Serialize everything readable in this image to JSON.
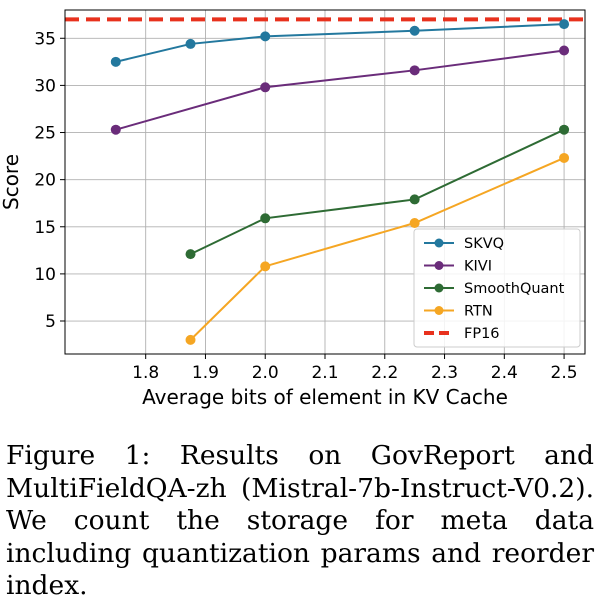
{
  "chart_data": {
    "type": "line",
    "title": "",
    "xlabel": "Average bits of element in KV Cache",
    "ylabel": "Score",
    "xlim": [
      1.665,
      2.535
    ],
    "ylim": [
      1.5,
      38
    ],
    "xticks": [
      1.8,
      1.9,
      2.0,
      2.1,
      2.2,
      2.3,
      2.4,
      2.5
    ],
    "xtick_labels": [
      "1.8",
      "1.9",
      "2.0",
      "2.1",
      "2.2",
      "2.3",
      "2.4",
      "2.5"
    ],
    "yticks": [
      5,
      10,
      15,
      20,
      25,
      30,
      35
    ],
    "ytick_labels": [
      "5",
      "10",
      "15",
      "20",
      "25",
      "30",
      "35"
    ],
    "grid": true,
    "legend_position": "lower-right",
    "series": [
      {
        "name": "SKVQ",
        "color": "#23789e",
        "x": [
          1.75,
          1.875,
          2.0,
          2.25,
          2.5
        ],
        "y": [
          32.5,
          34.4,
          35.2,
          35.8,
          36.5
        ]
      },
      {
        "name": "KIVI",
        "color": "#6a2c7a",
        "x": [
          1.75,
          2.0,
          2.25,
          2.5
        ],
        "y": [
          25.3,
          29.8,
          31.6,
          33.7
        ]
      },
      {
        "name": "SmoothQuant",
        "color": "#2e6b34",
        "x": [
          1.875,
          2.0,
          2.25,
          2.5
        ],
        "y": [
          12.1,
          15.9,
          17.9,
          25.3
        ]
      },
      {
        "name": "RTN",
        "color": "#f5a623",
        "x": [
          1.875,
          2.0,
          2.25,
          2.5
        ],
        "y": [
          3.0,
          10.8,
          15.4,
          22.3
        ]
      }
    ],
    "reference_line": {
      "name": "FP16",
      "color": "#e8311d",
      "y": 37.0
    }
  },
  "caption": "Figure 1: Results on GovReport and MultiFieldQA-zh (Mistral-7b-Instruct-V0.2). We count the storage for meta data including quantization params and reorder index."
}
